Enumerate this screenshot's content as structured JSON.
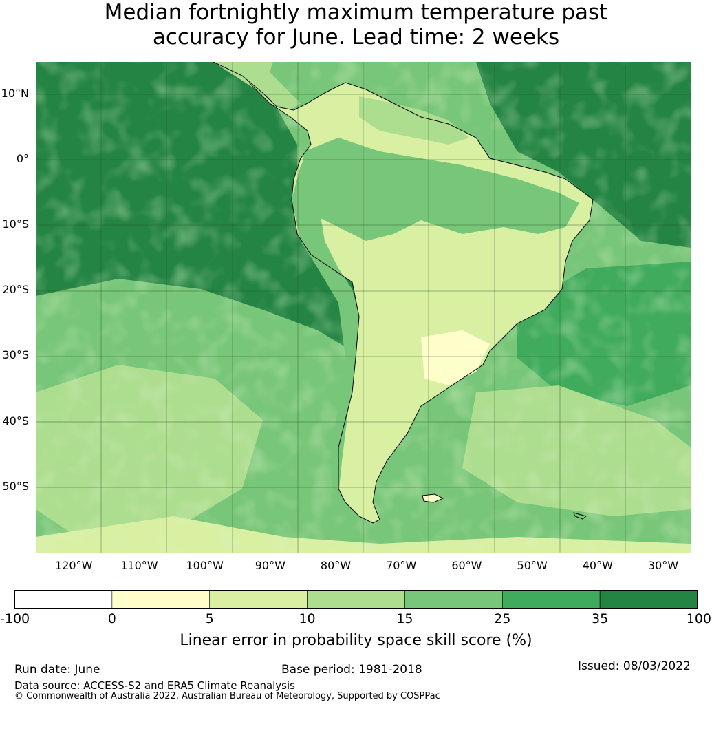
{
  "title": {
    "line1": "Median fortnightly maximum temperature past",
    "line2": "accuracy for June. Lead time: 2 weeks"
  },
  "map": {
    "lat_labels": [
      "10°N",
      "0°",
      "10°S",
      "20°S",
      "30°S",
      "40°S",
      "50°S"
    ],
    "lat_values": [
      10,
      0,
      -10,
      -20,
      -30,
      -40,
      -50
    ],
    "lon_labels": [
      "120°W",
      "110°W",
      "100°W",
      "90°W",
      "80°W",
      "70°W",
      "60°W",
      "50°W",
      "40°W",
      "30°W"
    ],
    "lon_values": [
      -120,
      -110,
      -100,
      -90,
      -80,
      -70,
      -60,
      -50,
      -40,
      -30
    ]
  },
  "colorbar": {
    "ticks": [
      "-100",
      "0",
      "5",
      "10",
      "15",
      "25",
      "35",
      "100"
    ],
    "colors": [
      "#ffffff",
      "#ffffcc",
      "#d9f0a3",
      "#addd8e",
      "#78c679",
      "#41ab5d",
      "#238443"
    ],
    "label": "Linear error in probability space skill score (%)"
  },
  "footer": {
    "run_date": "Run date: June",
    "base_period": "Base period: 1981-2018",
    "issued": "Issued: 08/03/2022",
    "data_source": "Data source: ACCESS-S2 and ERA5 Climate Reanalysis",
    "copyright": "© Commonwealth of Australia 2022, Australian Bureau of Meteorology, Supported by COSPPac"
  }
}
